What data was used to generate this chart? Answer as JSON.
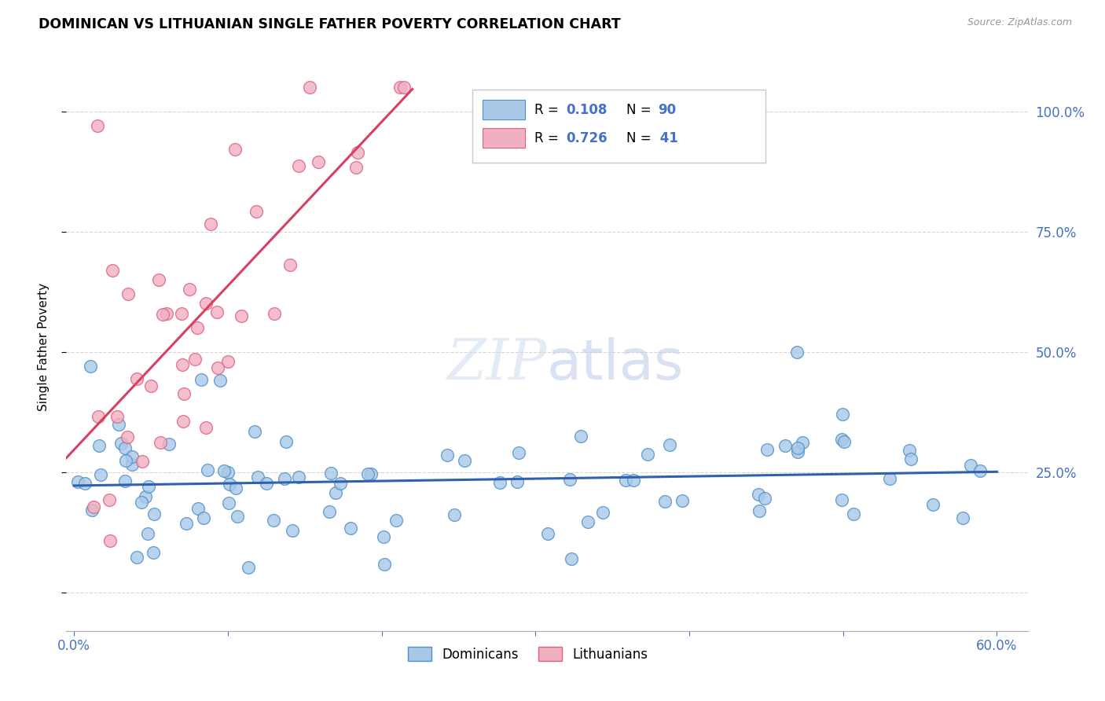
{
  "title": "DOMINICAN VS LITHUANIAN SINGLE FATHER POVERTY CORRELATION CHART",
  "source": "Source: ZipAtlas.com",
  "ylabel": "Single Father Poverty",
  "ytick_labels": [
    "",
    "25.0%",
    "50.0%",
    "75.0%",
    "100.0%"
  ],
  "ytick_positions": [
    0.0,
    0.25,
    0.5,
    0.75,
    1.0
  ],
  "xlim": [
    -0.005,
    0.62
  ],
  "ylim": [
    -0.08,
    1.1
  ],
  "watermark": "ZIPatlas",
  "blue_color": "#a8c8e8",
  "pink_color": "#f0b0c0",
  "blue_line_color": "#3060b0",
  "pink_line_color": "#d84060",
  "blue_marker_edge": "#5090c8",
  "pink_marker_edge": "#e06080",
  "label1": "Dominicans",
  "label2": "Lithuanians",
  "legend_text_color": "#4472c4",
  "dom_seed": 12345,
  "lith_seed": 99
}
